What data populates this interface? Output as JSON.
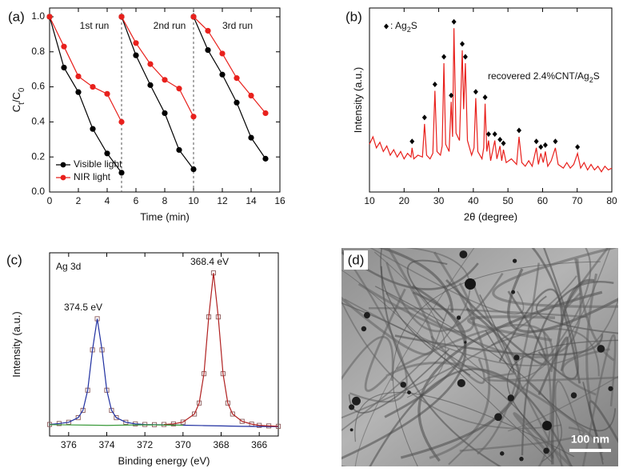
{
  "chart_data": [
    {
      "type": "line",
      "panel_label": "(a)",
      "xlabel": "Time (min)",
      "ylabel": [
        "C",
        "t",
        "/C",
        "0"
      ],
      "annotations": [
        [
          "1st run"
        ],
        [
          "2nd run"
        ],
        [
          "3rd run"
        ]
      ],
      "x": [
        0,
        1,
        2,
        3,
        4,
        5,
        null,
        5,
        6,
        7,
        8,
        9,
        10,
        null,
        10,
        11,
        12,
        13,
        14,
        15
      ],
      "series": [
        {
          "name": "Visible light",
          "color": "#000000",
          "marker": "circle",
          "values": [
            1.0,
            0.71,
            0.57,
            0.36,
            0.22,
            0.11,
            null,
            1.0,
            0.78,
            0.61,
            0.45,
            0.24,
            0.13,
            null,
            1.0,
            0.81,
            0.67,
            0.51,
            0.31,
            0.19
          ]
        },
        {
          "name": "NIR light",
          "color": "#e8201c",
          "marker": "circle",
          "values": [
            1.0,
            0.83,
            0.66,
            0.6,
            0.56,
            0.4,
            null,
            1.0,
            0.85,
            0.73,
            0.64,
            0.59,
            0.43,
            null,
            1.0,
            0.92,
            0.79,
            0.65,
            0.55,
            0.45
          ]
        }
      ],
      "vlines": [
        5,
        10
      ],
      "xlim": [
        0,
        16
      ],
      "xticks": [
        0,
        2,
        4,
        6,
        8,
        10,
        12,
        14,
        16
      ],
      "ylim": [
        0,
        1.05
      ],
      "yticks": [
        {
          "value": 0,
          "label": "0.0"
        },
        0.2,
        0.4,
        0.6,
        0.8,
        {
          "value": 1,
          "label": "1.0"
        }
      ],
      "legend": "lower left"
    },
    {
      "type": "line",
      "panel_label": "(b)",
      "xlabel": "2θ (degree)",
      "ylabel": [
        "Intensity (a.u.)"
      ],
      "annotations": [
        [
          ": Ag",
          "2",
          "S"
        ],
        [
          "recovered 2.4%CNT/Ag",
          "2",
          "S"
        ]
      ],
      "series": [
        {
          "color": "#e8201c",
          "x": [
            10,
            11,
            12,
            13,
            14,
            15,
            16,
            17,
            18,
            19,
            20,
            21,
            22,
            22.3,
            22.8,
            24,
            25.3,
            25.9,
            26.5,
            27.5,
            28.3,
            28.9,
            29.5,
            30.5,
            31,
            31.5,
            32,
            33,
            33.6,
            34,
            34.4,
            35,
            36,
            36.8,
            37.2,
            37.7,
            38.3,
            39.5,
            40.2,
            40.7,
            41.3,
            42.5,
            43,
            43.4,
            43.9,
            44.4,
            45,
            46.2,
            46.8,
            47.7,
            48.2,
            48.7,
            49.5,
            51,
            52.5,
            53.2,
            54,
            55,
            56,
            57,
            58.2,
            58.8,
            59.5,
            60.2,
            60.8,
            61.5,
            62.5,
            63.7,
            64.5,
            66,
            67,
            68,
            69,
            70.1,
            71,
            72,
            73,
            74,
            75,
            76,
            77,
            78,
            79,
            80
          ],
          "values": [
            26,
            30,
            24,
            27,
            22,
            25,
            20,
            23,
            19,
            22,
            18,
            21,
            19,
            24,
            18,
            20,
            19,
            37,
            20,
            18,
            21,
            55,
            22,
            20,
            25,
            70,
            26,
            22,
            49,
            30,
            89,
            32,
            28,
            77,
            45,
            70,
            28,
            20,
            24,
            51,
            22,
            18,
            24,
            48,
            22,
            28,
            17,
            28,
            18,
            25,
            17,
            23,
            16,
            18,
            15,
            30,
            16,
            14,
            17,
            14,
            24,
            15,
            21,
            16,
            22,
            14,
            17,
            24,
            15,
            13,
            16,
            13,
            15,
            21,
            13,
            16,
            12,
            15,
            12,
            14,
            11,
            14,
            12,
            13
          ]
        }
      ],
      "peaks": [
        22.3,
        25.9,
        28.9,
        31.5,
        33.6,
        34.4,
        36.8,
        37.7,
        40.7,
        43.4,
        44.4,
        46.2,
        47.7,
        48.7,
        53.2,
        58.2,
        59.5,
        60.8,
        63.7,
        70.1
      ],
      "xlim": [
        10,
        80
      ],
      "xticks": [
        10,
        20,
        30,
        40,
        50,
        60,
        70,
        80
      ],
      "ylim": [
        0,
        100
      ]
    },
    {
      "type": "line",
      "panel_label": "(c)",
      "xlabel": "Binding energy (eV)",
      "ylabel": [
        "Intensity (a.u.)"
      ],
      "annotations": [
        [
          "Ag 3d"
        ],
        [
          "374.5 eV"
        ],
        [
          "368.4 eV"
        ]
      ],
      "series": [
        {
          "color": "#8a5a5a",
          "marker": "square",
          "line": false,
          "x": [
            377,
            376.5,
            376,
            375.5,
            375.25,
            375,
            374.75,
            374.5,
            374.25,
            374,
            373.75,
            373.5,
            373,
            372.5,
            372,
            371.5,
            371,
            370.5,
            370,
            369.4,
            369.15,
            368.9,
            368.65,
            368.4,
            368.15,
            367.9,
            367.65,
            367.4,
            366.9,
            366.4,
            366,
            365.5,
            365
          ],
          "values": [
            6.3,
            6.8,
            7.5,
            10,
            14,
            25,
            47,
            64,
            47,
            25,
            14,
            10,
            7.5,
            6.6,
            6.3,
            6.2,
            6.3,
            6.6,
            7.6,
            12,
            18,
            34,
            65,
            89,
            65,
            34,
            18,
            12,
            8,
            6.5,
            5.8,
            5.5,
            5.3
          ]
        },
        {
          "color": "#1f2fa0",
          "x": [
            377,
            376.5,
            376,
            375.5,
            375.25,
            375,
            374.75,
            374.5,
            374.25,
            374,
            373.75,
            373.5,
            373,
            372.5,
            372,
            371.5,
            371,
            370.5,
            370,
            369,
            368,
            367,
            366,
            365
          ],
          "values": [
            6.3,
            6.8,
            7.5,
            10,
            14,
            25,
            47,
            64,
            47,
            25,
            14,
            10,
            7.5,
            6.6,
            6.3,
            6.2,
            6.1,
            6,
            5.9,
            5.7,
            5.5,
            5.3,
            5.2,
            5.1
          ]
        },
        {
          "color": "#b02020",
          "x": [
            371,
            370.5,
            370,
            369.4,
            369.15,
            368.9,
            368.65,
            368.4,
            368.15,
            367.9,
            367.65,
            367.4,
            366.9,
            366.4,
            366,
            365.5,
            365
          ],
          "values": [
            6.3,
            6.6,
            7.6,
            12,
            18,
            34,
            65,
            89,
            65,
            34,
            18,
            12,
            8,
            6.5,
            5.8,
            5.5,
            5.3
          ]
        },
        {
          "color": "#3a9a3a",
          "x": [
            377,
            374,
            372,
            370
          ],
          "values": [
            6.2,
            5.8,
            6.1,
            5.9
          ]
        }
      ],
      "xlim": [
        377,
        365
      ],
      "xticks": [
        376,
        374,
        372,
        370,
        368,
        366
      ],
      "ylim": [
        0,
        100
      ]
    }
  ],
  "image": {
    "panel_label": "(d)",
    "scale_bar": "100 nm"
  }
}
